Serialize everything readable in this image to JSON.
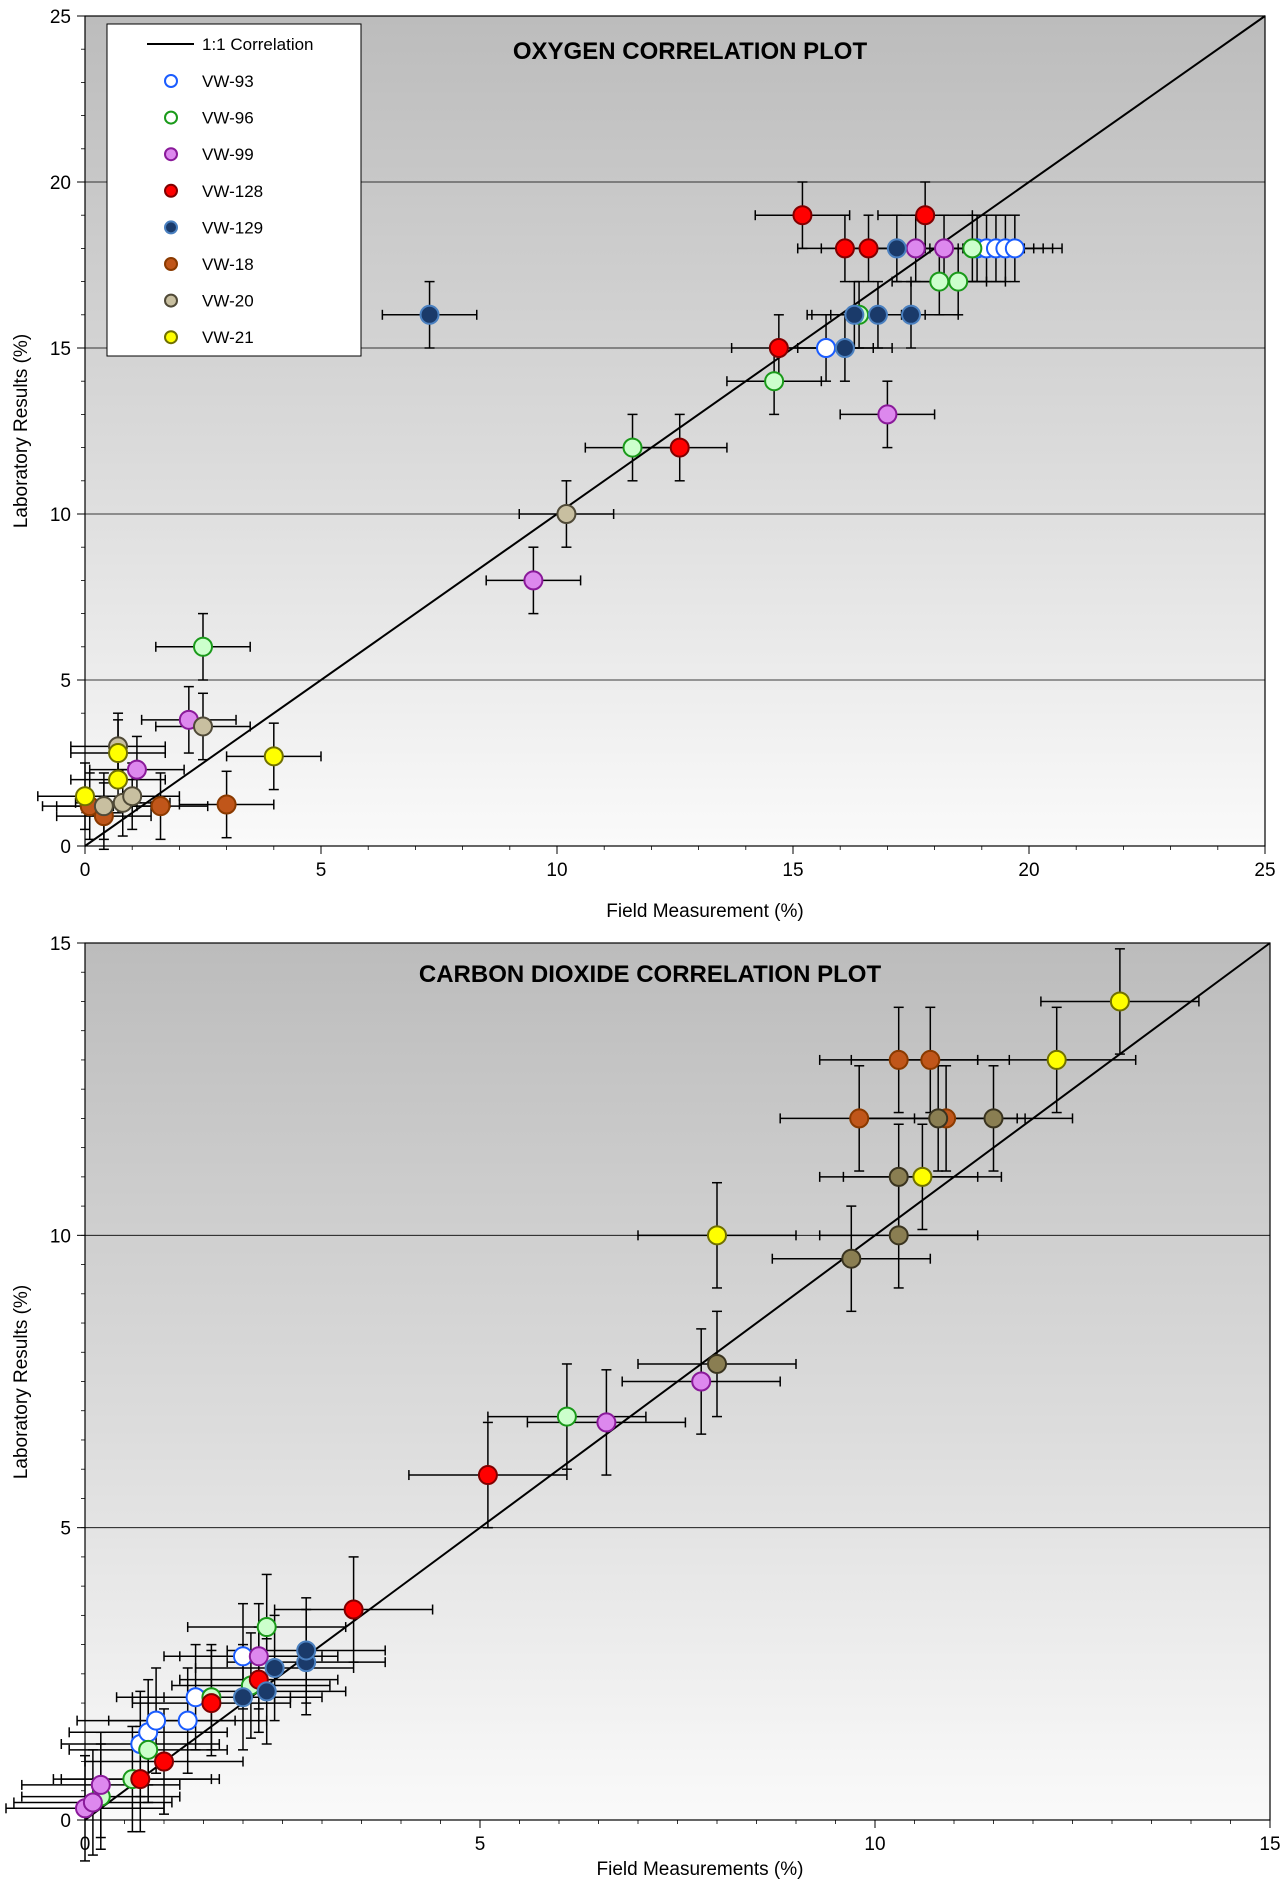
{
  "chart_data": [
    {
      "type": "scatter",
      "title": "OXYGEN CORRELATION PLOT",
      "xlabel": "Field Measurement (%)",
      "ylabel": "Laboratory Results (%)",
      "xlim": [
        0,
        25
      ],
      "ylim": [
        0,
        25
      ],
      "xticks": [
        "0",
        "5",
        "10",
        "15",
        "20",
        "25"
      ],
      "yticks": [
        "0",
        "5",
        "10",
        "15",
        "20",
        "25"
      ],
      "grid": "horizontal",
      "legend_position": "top-left",
      "reference_line": {
        "name": "1:1 Correlation",
        "from": [
          0,
          0
        ],
        "to": [
          25,
          25
        ]
      },
      "series": [
        {
          "name": "VW-93",
          "color": "#ffffff",
          "stroke": "#1a5cff",
          "legend_fill": "#ffffff",
          "points": [
            [
              15.7,
              15
            ],
            [
              18.9,
              18
            ],
            [
              19.1,
              18
            ],
            [
              19.3,
              18
            ],
            [
              19.5,
              18
            ],
            [
              19.7,
              18
            ]
          ]
        },
        {
          "name": "VW-96",
          "color": "#ccffcc",
          "stroke": "#1a9a1a",
          "legend_fill": "#ffffff",
          "points": [
            [
              2.5,
              6
            ],
            [
              11.6,
              12
            ],
            [
              14.6,
              14
            ],
            [
              16.4,
              16
            ],
            [
              18.1,
              17
            ],
            [
              18.5,
              17
            ],
            [
              18.8,
              18
            ]
          ]
        },
        {
          "name": "VW-99",
          "color": "#dd88ee",
          "stroke": "#8a1a9a",
          "legend_fill": "#dd88ee",
          "points": [
            [
              2.2,
              3.8
            ],
            [
              1.1,
              2.3
            ],
            [
              9.5,
              8
            ],
            [
              17.0,
              13
            ],
            [
              17.6,
              18
            ],
            [
              18.2,
              18
            ]
          ]
        },
        {
          "name": "VW-128",
          "color": "#ff0000",
          "stroke": "#800000",
          "legend_fill": "#ff0000",
          "points": [
            [
              14.7,
              15
            ],
            [
              12.6,
              12
            ],
            [
              15.2,
              19
            ],
            [
              16.1,
              18
            ],
            [
              16.6,
              18
            ],
            [
              17.8,
              19
            ]
          ]
        },
        {
          "name": "VW-129",
          "color": "#1a3a6a",
          "stroke": "#4a80c0",
          "legend_fill": "#1a3a6a",
          "points": [
            [
              7.3,
              16
            ],
            [
              16.1,
              15
            ],
            [
              16.3,
              16
            ],
            [
              16.8,
              16
            ],
            [
              17.2,
              18
            ],
            [
              17.5,
              16
            ]
          ]
        },
        {
          "name": "VW-18",
          "color": "#c0561a",
          "stroke": "#8a3a00",
          "legend_fill": "#c0561a",
          "points": [
            [
              0.1,
              1.2
            ],
            [
              0.4,
              0.9
            ],
            [
              1.6,
              1.2
            ],
            [
              3.0,
              1.25
            ]
          ]
        },
        {
          "name": "VW-20",
          "color": "#c8bfa0",
          "stroke": "#504a38",
          "legend_fill": "#c8bfa0",
          "points": [
            [
              0.7,
              3.0
            ],
            [
              0.4,
              1.2
            ],
            [
              0.8,
              1.3
            ],
            [
              1.0,
              1.5
            ],
            [
              2.5,
              3.6
            ],
            [
              10.2,
              10
            ]
          ]
        },
        {
          "name": "VW-21",
          "color": "#ffff00",
          "stroke": "#707000",
          "legend_fill": "#ffff00",
          "points": [
            [
              0.0,
              1.5
            ],
            [
              0.7,
              2.0
            ],
            [
              0.7,
              2.8
            ],
            [
              4.0,
              2.7
            ]
          ]
        }
      ]
    },
    {
      "type": "scatter",
      "title": "CARBON DIOXIDE CORRELATION PLOT",
      "xlabel": "Field Measurements (%)",
      "ylabel": "Laboratory Results (%)",
      "xlim": [
        0,
        15
      ],
      "ylim": [
        0,
        15
      ],
      "xticks": [
        "0",
        "5",
        "10",
        "15"
      ],
      "yticks": [
        "0",
        "5",
        "10",
        "15"
      ],
      "grid": "horizontal",
      "reference_line": {
        "from": [
          0,
          0
        ],
        "to": [
          15,
          15
        ]
      },
      "series": [
        {
          "color": "#ffffff",
          "stroke": "#1a5cff",
          "points": [
            [
              0.7,
              1.3
            ],
            [
              0.8,
              1.5
            ],
            [
              0.9,
              1.7
            ],
            [
              1.3,
              1.7
            ],
            [
              1.4,
              2.1
            ],
            [
              2.0,
              2.8
            ]
          ]
        },
        {
          "color": "#ccffcc",
          "stroke": "#1a9a1a",
          "points": [
            [
              0.2,
              0.4
            ],
            [
              0.6,
              0.7
            ],
            [
              0.8,
              1.2
            ],
            [
              1.6,
              2.1
            ],
            [
              2.1,
              2.3
            ],
            [
              2.3,
              3.3
            ],
            [
              6.1,
              6.9
            ]
          ]
        },
        {
          "color": "#dd88ee",
          "stroke": "#8a1a9a",
          "points": [
            [
              0.0,
              0.2
            ],
            [
              0.1,
              0.3
            ],
            [
              0.2,
              0.6
            ],
            [
              2.2,
              2.8
            ],
            [
              6.6,
              6.8
            ],
            [
              7.8,
              7.5
            ]
          ]
        },
        {
          "color": "#ff0000",
          "stroke": "#800000",
          "points": [
            [
              0.7,
              0.7
            ],
            [
              1.0,
              1.0
            ],
            [
              1.6,
              2.0
            ],
            [
              2.2,
              2.4
            ],
            [
              3.4,
              3.6
            ],
            [
              5.1,
              5.9
            ]
          ]
        },
        {
          "color": "#1a3a6a",
          "stroke": "#4a80c0",
          "points": [
            [
              2.0,
              2.1
            ],
            [
              2.3,
              2.2
            ],
            [
              2.4,
              2.6
            ],
            [
              2.8,
              2.7
            ],
            [
              2.8,
              2.9
            ]
          ]
        },
        {
          "color": "#c0561a",
          "stroke": "#8a3a00",
          "points": [
            [
              9.8,
              12
            ],
            [
              10.3,
              13
            ],
            [
              10.7,
              13
            ],
            [
              10.9,
              12
            ]
          ]
        },
        {
          "color": "#8a7e52",
          "stroke": "#3a3420",
          "points": [
            [
              8.0,
              7.8
            ],
            [
              9.7,
              9.6
            ],
            [
              10.3,
              10
            ],
            [
              10.3,
              11
            ],
            [
              10.8,
              12
            ],
            [
              11.5,
              12
            ]
          ]
        },
        {
          "color": "#ffff00",
          "stroke": "#707000",
          "points": [
            [
              8.0,
              10
            ],
            [
              10.6,
              11
            ],
            [
              12.3,
              13
            ],
            [
              13.1,
              14
            ]
          ]
        }
      ]
    }
  ]
}
